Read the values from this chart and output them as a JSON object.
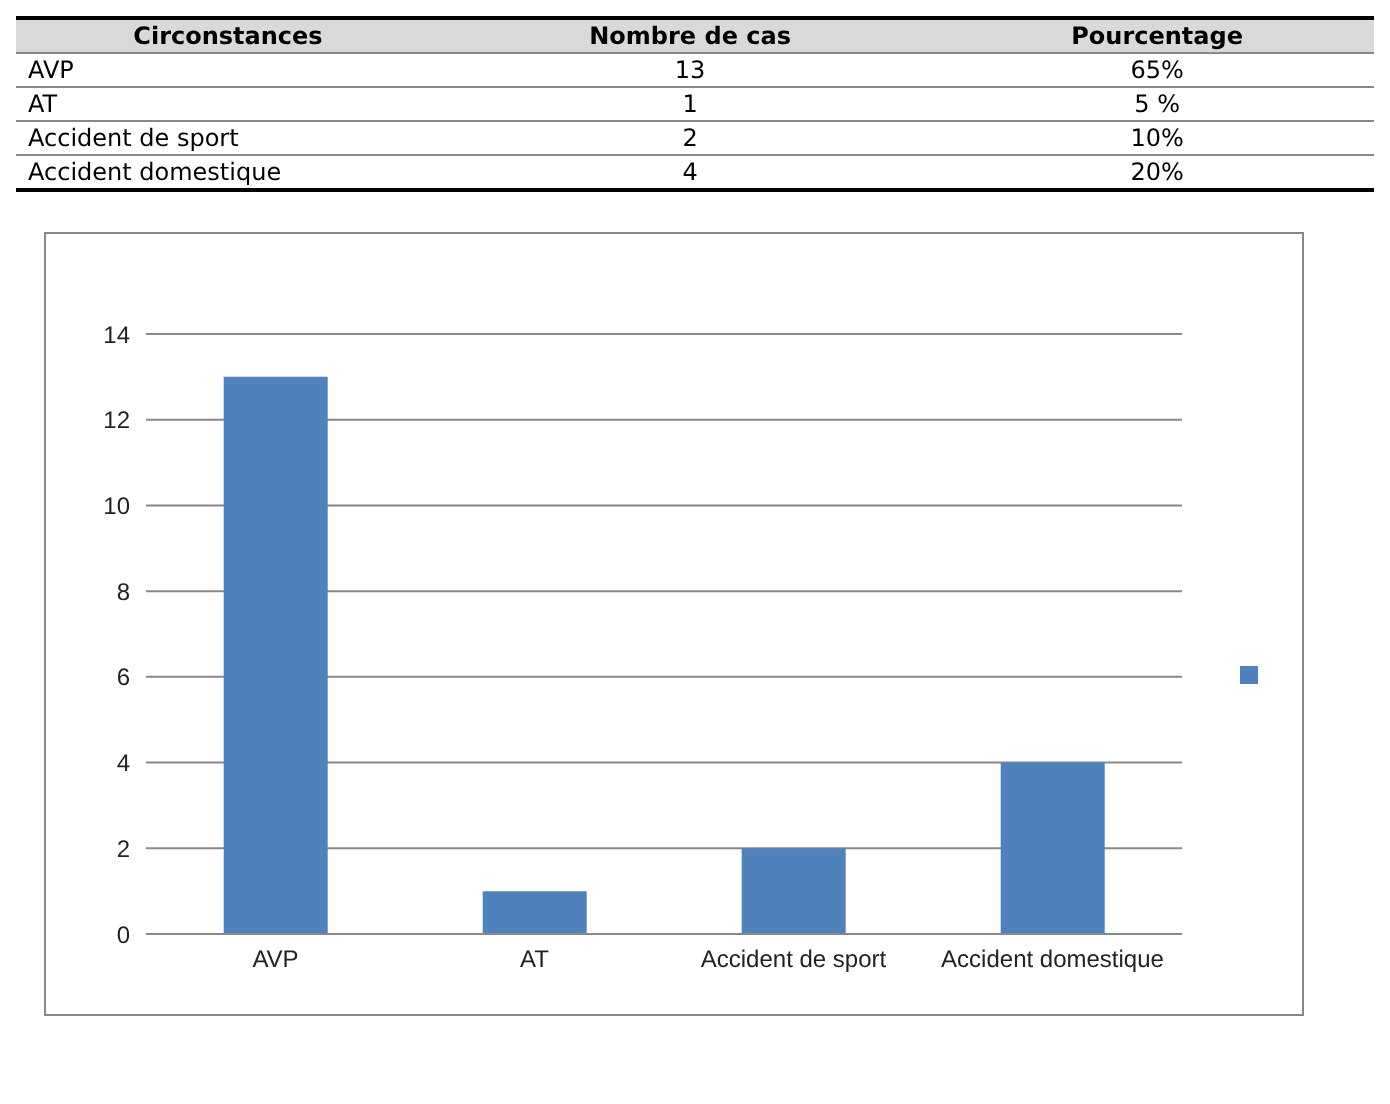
{
  "chart_data": [
    {
      "type": "other",
      "annotations": [
        "Circonstances",
        "Nombre de cas",
        "Pourcentage",
        "AVP",
        "13",
        "65%",
        "AT",
        "1",
        "5 %",
        "Accident de sport",
        "2",
        "10%",
        "Accident domestique",
        "4",
        "20%"
      ]
    },
    {
      "type": "bar",
      "categories": [
        "AVP",
        "AT",
        "Accident de sport",
        "Accident domestique"
      ],
      "series": [
        {
          "color": "#4f81bd",
          "values": [
            13,
            1,
            2,
            4
          ]
        }
      ],
      "ylim": [
        0,
        14
      ],
      "yticks": [
        0,
        2,
        4,
        6,
        8,
        10,
        12,
        14
      ],
      "grid": "y"
    }
  ]
}
